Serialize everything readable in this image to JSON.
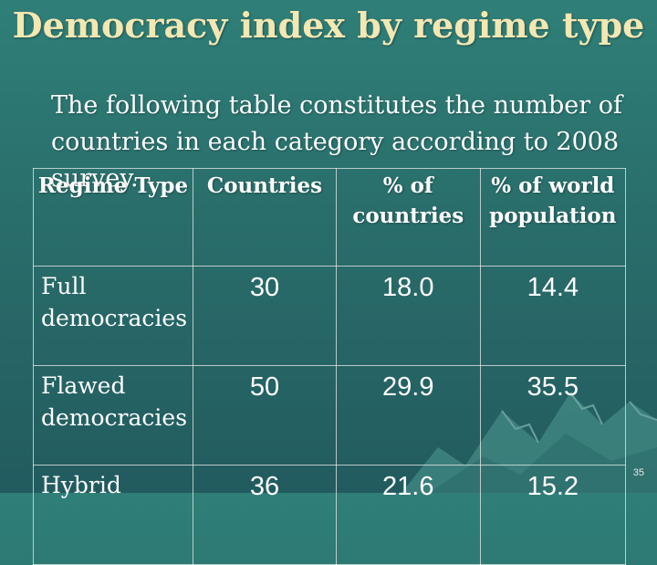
{
  "title": "Democracy index by regime type",
  "intro": "The following table constitutes the number of countries in each category according to 2008 survey.",
  "table": {
    "headers": [
      "Regime Type",
      "Countries",
      "% of countries",
      "% of world population"
    ],
    "rows": [
      {
        "type": "Full democracies",
        "countries": "30",
        "pct_countries": "18.0",
        "pct_population": "14.4"
      },
      {
        "type": "Flawed democracies",
        "countries": "50",
        "pct_countries": "29.9",
        "pct_population": "35.5"
      },
      {
        "type": "Hybrid",
        "countries": "36",
        "pct_countries": "21.6",
        "pct_population": "15.2"
      }
    ]
  },
  "page_number": "35",
  "colors": {
    "title": "#f3e7b2",
    "background": "#2a6f6c",
    "text": "#ffffff"
  }
}
